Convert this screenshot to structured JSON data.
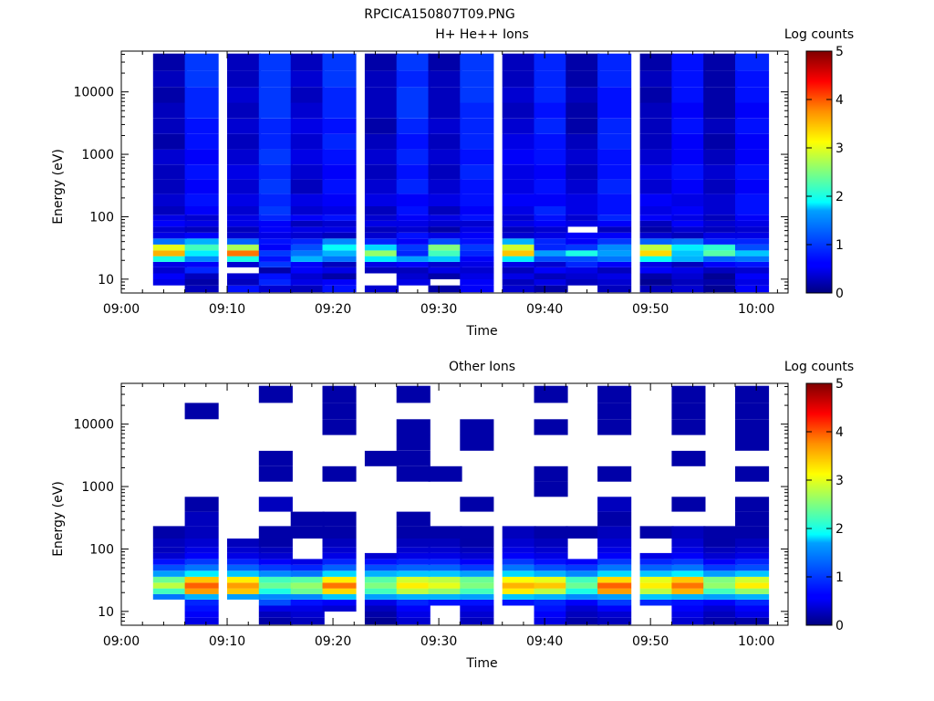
{
  "figure_title": "RPCICA150807T09.PNG",
  "chart_data": [
    {
      "type": "heatmap",
      "title": "H+ He++ Ions",
      "xlabel": "Time",
      "ylabel": "Energy (eV)",
      "xlim": [
        "09:00",
        "10:03"
      ],
      "ylim": [
        6,
        45000
      ],
      "y_scale": "log",
      "x_ticks": [
        "09:00",
        "09:10",
        "09:20",
        "09:30",
        "09:40",
        "09:50",
        "10:00"
      ],
      "y_ticks": [
        "10",
        "100",
        "1000",
        "10000"
      ],
      "colorbar": {
        "label": "Log counts",
        "min": 0,
        "max": 5,
        "ticks": [
          "0",
          "1",
          "2",
          "3",
          "4",
          "5"
        ],
        "colormap": "jet"
      },
      "sweep_start_times": [
        "09:03",
        "09:06",
        "09:10",
        "09:13",
        "09:16",
        "09:19",
        "09:23",
        "09:26",
        "09:29",
        "09:32",
        "09:36",
        "09:39",
        "09:42",
        "09:45",
        "09:49",
        "09:52",
        "09:55",
        "09:58"
      ],
      "sweep_duration_min": 3.2,
      "energy_bins_eV": [
        7,
        9,
        11,
        14,
        17,
        21,
        26,
        32,
        40,
        50,
        62,
        77,
        96,
        120,
        180,
        300,
        520,
        900,
        1600,
        2800,
        5000,
        9000,
        16000,
        30000
      ],
      "log_counts": [
        [
          -1,
          0.3,
          0.7,
          0.4,
          0.3,
          0.7,
          0.4,
          -1,
          0.2,
          0.6,
          0.4,
          0.2,
          -1,
          0.3,
          0.3,
          0.4,
          0.1,
          0.6
        ],
        [
          0.5,
          0.2,
          0.3,
          0.8,
          0.5,
          0.6,
          -1,
          0.5,
          -1,
          0.6,
          0.3,
          0.5,
          0.3,
          0.4,
          0.1,
          0.3,
          0.2,
          0.5
        ],
        [
          0.6,
          0.3,
          0.4,
          0.7,
          0.4,
          0.2,
          -1,
          0.4,
          0.2,
          0.5,
          0.5,
          0.3,
          0.4,
          0.5,
          0.2,
          0.4,
          0.1,
          0.6
        ],
        [
          0.4,
          0.8,
          -1,
          0.2,
          0.6,
          0.5,
          0.3,
          0.3,
          0.5,
          0.4,
          0.3,
          0.6,
          0.5,
          0.3,
          0.6,
          0.5,
          0.3,
          0.4
        ],
        [
          0.5,
          0.6,
          0.4,
          0.9,
          0.6,
          0.3,
          0.5,
          0.6,
          0.4,
          0.5,
          0.5,
          0.4,
          0.8,
          0.6,
          0.5,
          0.3,
          0.6,
          0.7
        ],
        [
          2.0,
          1.3,
          2.0,
          0.7,
          1.5,
          1.2,
          1.8,
          1.4,
          1.6,
          0.6,
          1.8,
          1.0,
          1.0,
          1.2,
          1.9,
          1.5,
          1.1,
          1.2
        ],
        [
          3.5,
          1.8,
          3.8,
          0.9,
          1.2,
          1.5,
          2.6,
          0.8,
          2.2,
          0.8,
          3.4,
          1.4,
          2.0,
          1.4,
          3.3,
          1.6,
          2.3,
          1.6
        ],
        [
          3.0,
          2.2,
          2.7,
          0.6,
          1.0,
          1.9,
          1.7,
          0.9,
          2.5,
          0.9,
          2.9,
          0.8,
          0.9,
          1.3,
          2.8,
          1.8,
          2.1,
          1.0
        ],
        [
          1.2,
          1.5,
          1.1,
          0.7,
          0.8,
          1.3,
          0.8,
          0.6,
          1.0,
          0.7,
          1.5,
          0.8,
          0.6,
          0.9,
          1.1,
          1.2,
          0.8,
          0.8
        ],
        [
          0.5,
          0.6,
          0.4,
          0.5,
          0.4,
          0.3,
          0.4,
          0.7,
          0.5,
          0.6,
          0.4,
          0.5,
          0.6,
          0.6,
          0.4,
          0.3,
          0.5,
          0.5
        ],
        [
          0.4,
          0.3,
          0.3,
          0.6,
          0.5,
          0.5,
          0.3,
          0.4,
          0.2,
          0.5,
          0.3,
          0.4,
          -1,
          0.3,
          0.2,
          0.4,
          0.3,
          0.4
        ],
        [
          0.6,
          0.5,
          0.5,
          0.6,
          0.3,
          0.4,
          0.5,
          0.5,
          0.4,
          0.4,
          0.5,
          0.6,
          0.5,
          0.6,
          0.3,
          0.6,
          0.4,
          0.5
        ],
        [
          0.5,
          0.4,
          0.5,
          0.8,
          0.6,
          0.7,
          0.4,
          0.6,
          0.5,
          0.7,
          0.4,
          0.7,
          0.4,
          0.8,
          0.6,
          0.5,
          0.3,
          0.6
        ],
        [
          0.3,
          0.6,
          0.4,
          0.9,
          0.4,
          0.5,
          0.3,
          0.7,
          0.3,
          0.6,
          0.5,
          0.8,
          0.5,
          0.7,
          0.5,
          0.6,
          0.4,
          0.7
        ],
        [
          0.4,
          0.7,
          0.5,
          0.8,
          0.5,
          0.6,
          0.5,
          0.6,
          0.5,
          0.7,
          0.6,
          0.6,
          0.5,
          0.7,
          0.6,
          0.5,
          0.4,
          0.7
        ],
        [
          0.3,
          0.6,
          0.4,
          0.9,
          0.3,
          0.7,
          0.4,
          0.8,
          0.4,
          0.7,
          0.5,
          0.7,
          0.4,
          0.8,
          0.4,
          0.6,
          0.3,
          0.6
        ],
        [
          0.3,
          0.7,
          0.5,
          0.8,
          0.4,
          0.6,
          0.3,
          0.7,
          0.3,
          0.8,
          0.5,
          0.6,
          0.3,
          0.7,
          0.5,
          0.7,
          0.4,
          0.7
        ],
        [
          0.4,
          0.6,
          0.4,
          0.9,
          0.5,
          0.7,
          0.4,
          0.8,
          0.4,
          0.7,
          0.6,
          0.7,
          0.4,
          0.7,
          0.4,
          0.6,
          0.3,
          0.6
        ],
        [
          0.2,
          0.7,
          0.3,
          0.8,
          0.4,
          0.8,
          0.3,
          0.7,
          0.3,
          0.8,
          0.5,
          0.7,
          0.3,
          0.8,
          0.3,
          0.6,
          0.2,
          0.6
        ],
        [
          0.3,
          0.7,
          0.4,
          0.8,
          0.5,
          0.7,
          0.2,
          0.8,
          0.4,
          0.8,
          0.4,
          0.8,
          0.2,
          0.8,
          0.3,
          0.7,
          0.3,
          0.7
        ],
        [
          0.3,
          0.8,
          0.3,
          0.9,
          0.4,
          0.8,
          0.3,
          0.9,
          0.3,
          0.8,
          0.3,
          0.7,
          0.2,
          0.7,
          0.3,
          0.6,
          0.2,
          0.6
        ],
        [
          0.2,
          0.8,
          0.4,
          0.9,
          0.3,
          0.8,
          0.3,
          0.9,
          0.3,
          0.9,
          0.4,
          0.8,
          0.3,
          0.7,
          0.2,
          0.7,
          0.2,
          0.7
        ],
        [
          0.3,
          0.9,
          0.3,
          0.9,
          0.4,
          0.9,
          0.3,
          0.8,
          0.3,
          0.9,
          0.3,
          0.8,
          0.2,
          0.8,
          0.3,
          0.7,
          0.2,
          0.7
        ],
        [
          0.2,
          0.9,
          0.3,
          0.9,
          0.3,
          0.9,
          0.2,
          0.9,
          0.2,
          0.9,
          0.3,
          0.8,
          0.2,
          0.8,
          0.2,
          0.7,
          0.2,
          0.8
        ]
      ]
    },
    {
      "type": "heatmap",
      "title": "Other Ions",
      "xlabel": "Time",
      "ylabel": "Energy (eV)",
      "xlim": [
        "09:00",
        "10:03"
      ],
      "ylim": [
        6,
        45000
      ],
      "y_scale": "log",
      "x_ticks": [
        "09:00",
        "09:10",
        "09:20",
        "09:30",
        "09:40",
        "09:50",
        "10:00"
      ],
      "y_ticks": [
        "10",
        "100",
        "1000",
        "10000"
      ],
      "colorbar": {
        "label": "Log counts",
        "min": 0,
        "max": 5,
        "ticks": [
          "0",
          "1",
          "2",
          "3",
          "4",
          "5"
        ],
        "colormap": "jet"
      },
      "sweep_start_times": [
        "09:03",
        "09:06",
        "09:10",
        "09:13",
        "09:16",
        "09:19",
        "09:23",
        "09:26",
        "09:29",
        "09:32",
        "09:36",
        "09:39",
        "09:42",
        "09:45",
        "09:49",
        "09:52",
        "09:55",
        "09:58"
      ],
      "sweep_duration_min": 3.2,
      "energy_bins_eV": [
        7,
        9,
        11,
        14,
        17,
        21,
        26,
        32,
        40,
        50,
        62,
        77,
        96,
        120,
        180,
        300,
        520,
        900,
        1600,
        2800,
        5000,
        9000,
        16000,
        30000
      ],
      "log_counts": [
        [
          -1,
          0.5,
          -1,
          0.2,
          0.3,
          -1,
          0.1,
          0.4,
          -1,
          0.3,
          -1,
          0.5,
          0.2,
          0.3,
          -1,
          0.4,
          0.2,
          0.2
        ],
        [
          -1,
          0.6,
          -1,
          0.3,
          0.4,
          -1,
          0.2,
          0.5,
          -1,
          0.4,
          -1,
          0.6,
          0.3,
          0.4,
          -1,
          0.5,
          0.3,
          0.5
        ],
        [
          -1,
          0.7,
          -1,
          0.5,
          0.5,
          0.4,
          0.3,
          0.6,
          -1,
          0.5,
          -1,
          0.7,
          0.4,
          0.6,
          -1,
          0.6,
          0.4,
          0.6
        ],
        [
          -1,
          0.8,
          -1,
          1.0,
          0.7,
          0.6,
          0.5,
          0.8,
          0.7,
          0.7,
          0.7,
          0.8,
          0.6,
          0.9,
          0.8,
          0.7,
          0.6,
          0.8
        ],
        [
          1.2,
          1.5,
          1.4,
          1.3,
          1.3,
          1.6,
          1.4,
          1.5,
          1.5,
          1.4,
          1.6,
          1.5,
          1.3,
          1.4,
          1.6,
          1.5,
          1.4,
          1.5
        ],
        [
          2.2,
          3.6,
          3.4,
          2.0,
          2.4,
          3.3,
          2.2,
          2.8,
          2.6,
          2.2,
          3.2,
          2.8,
          2.0,
          3.6,
          2.8,
          3.5,
          2.2,
          2.6
        ],
        [
          2.8,
          3.9,
          3.6,
          2.4,
          2.6,
          3.8,
          2.5,
          3.2,
          3.0,
          2.5,
          3.5,
          3.4,
          2.4,
          3.9,
          3.2,
          3.8,
          2.6,
          3.2
        ],
        [
          2.4,
          3.4,
          3.2,
          2.2,
          2.3,
          3.2,
          2.3,
          2.9,
          2.8,
          2.4,
          3.1,
          3.0,
          2.2,
          3.3,
          3.0,
          3.4,
          2.5,
          2.9
        ],
        [
          1.4,
          1.8,
          1.6,
          1.3,
          1.2,
          1.7,
          1.5,
          1.6,
          1.6,
          1.4,
          1.7,
          1.5,
          1.3,
          1.7,
          1.6,
          1.8,
          1.4,
          1.6
        ],
        [
          1.0,
          1.2,
          1.1,
          0.9,
          0.8,
          1.1,
          1.0,
          1.1,
          1.1,
          0.9,
          1.2,
          1.0,
          0.9,
          1.2,
          1.1,
          1.2,
          0.9,
          1.0
        ],
        [
          0.7,
          0.9,
          0.8,
          0.6,
          0.5,
          0.8,
          0.7,
          0.8,
          0.8,
          0.6,
          0.9,
          0.7,
          0.6,
          0.9,
          0.8,
          0.9,
          0.6,
          0.8
        ],
        [
          0.4,
          0.6,
          0.5,
          0.4,
          -1,
          0.5,
          0.4,
          0.5,
          0.5,
          0.4,
          0.6,
          0.5,
          -1,
          0.6,
          0.5,
          0.6,
          0.4,
          0.5
        ],
        [
          0.3,
          0.5,
          0.4,
          0.3,
          -1,
          0.4,
          -1,
          0.4,
          0.4,
          0.3,
          0.5,
          0.4,
          -1,
          0.5,
          -1,
          0.5,
          0.3,
          0.4
        ],
        [
          0.3,
          0.4,
          0.3,
          0.2,
          -1,
          0.3,
          -1,
          0.3,
          0.3,
          0.2,
          0.4,
          0.3,
          -1,
          0.4,
          -1,
          0.4,
          0.2,
          0.3
        ],
        [
          0.2,
          0.3,
          -1,
          0.2,
          0.2,
          0.2,
          -1,
          0.2,
          0.2,
          0.2,
          0.3,
          0.2,
          0.2,
          0.3,
          0.2,
          0.3,
          0.2,
          0.2
        ],
        [
          -1,
          0.3,
          -1,
          -1,
          0.2,
          0.2,
          -1,
          0.2,
          -1,
          -1,
          -1,
          -1,
          -1,
          0.2,
          -1,
          -1,
          -1,
          0.2
        ],
        [
          -1,
          0.2,
          -1,
          0.3,
          -1,
          -1,
          -1,
          -1,
          -1,
          0.2,
          -1,
          -1,
          -1,
          0.3,
          -1,
          0.2,
          -1,
          0.2
        ],
        [
          -1,
          -1,
          -1,
          -1,
          -1,
          -1,
          -1,
          -1,
          -1,
          -1,
          -1,
          0.2,
          -1,
          -1,
          -1,
          -1,
          -1,
          -1
        ],
        [
          -1,
          -1,
          -1,
          0.2,
          -1,
          0.2,
          -1,
          0.2,
          0.2,
          -1,
          -1,
          0.2,
          -1,
          0.2,
          -1,
          -1,
          -1,
          0.2
        ],
        [
          -1,
          -1,
          -1,
          0.2,
          -1,
          -1,
          0.2,
          0.2,
          -1,
          -1,
          -1,
          -1,
          -1,
          -1,
          -1,
          0.2,
          -1,
          -1
        ],
        [
          -1,
          -1,
          -1,
          -1,
          -1,
          -1,
          -1,
          0.2,
          -1,
          0.2,
          -1,
          -1,
          -1,
          -1,
          -1,
          -1,
          -1,
          0.2
        ],
        [
          -1,
          -1,
          -1,
          -1,
          -1,
          0.2,
          -1,
          0.2,
          -1,
          0.2,
          -1,
          0.2,
          -1,
          0.2,
          -1,
          0.2,
          -1,
          0.2
        ],
        [
          -1,
          0.2,
          -1,
          -1,
          -1,
          0.2,
          -1,
          -1,
          -1,
          -1,
          -1,
          -1,
          -1,
          0.2,
          -1,
          0.2,
          -1,
          0.2
        ],
        [
          -1,
          -1,
          -1,
          0.2,
          -1,
          0.2,
          -1,
          0.2,
          -1,
          -1,
          -1,
          0.2,
          -1,
          0.2,
          -1,
          0.2,
          -1,
          0.2
        ]
      ]
    }
  ]
}
